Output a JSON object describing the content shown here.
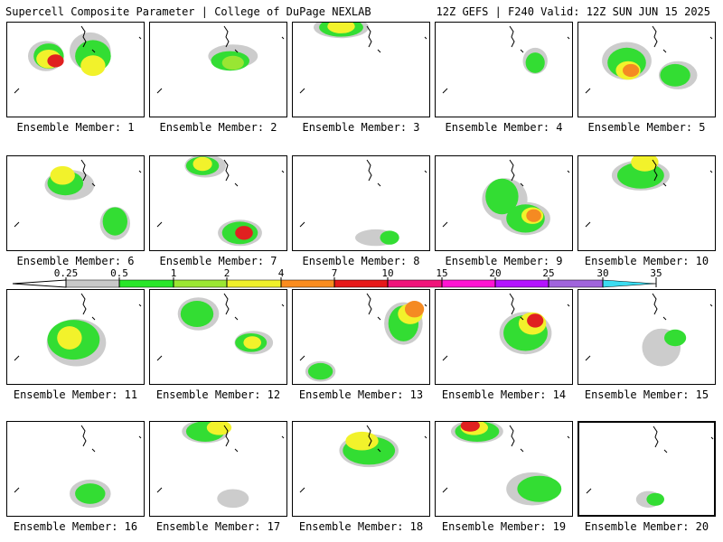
{
  "header": {
    "left": "Supercell Composite Parameter | College of DuPage NEXLAB",
    "right": "12Z GEFS | F240 Valid: 12Z SUN JUN 15 2025"
  },
  "legend": {
    "labels": [
      "0.25",
      "0.5",
      "1",
      "2",
      "4",
      "7",
      "10",
      "15",
      "20",
      "25",
      "30",
      "35"
    ],
    "colors": [
      "#c8c8c8",
      "#28e628",
      "#9be632",
      "#f0f028",
      "#fa8c1e",
      "#e61919",
      "#f0147a",
      "#ff14d2",
      "#b414ff",
      "#a064dc",
      "#3cdcf0"
    ]
  },
  "palette": {
    "grey": "#cccccc",
    "green": "#33dd33",
    "lime": "#99e633",
    "yellow": "#f2f22b",
    "orange": "#f58a22",
    "red": "#e02020"
  },
  "panels": [
    {
      "label": "Ensemble Member: 1",
      "blobs": [
        [
          0.28,
          0.35,
          0.18,
          0.22,
          "grey"
        ],
        [
          0.6,
          0.3,
          0.22,
          0.3,
          "grey"
        ],
        [
          0.3,
          0.35,
          0.14,
          0.17,
          "green"
        ],
        [
          0.62,
          0.35,
          0.18,
          0.24,
          "green"
        ],
        [
          0.3,
          0.38,
          0.1,
          0.1,
          "yellow"
        ],
        [
          0.62,
          0.45,
          0.1,
          0.12,
          "yellow"
        ],
        [
          0.35,
          0.4,
          0.04,
          0.04,
          "red"
        ]
      ]
    },
    {
      "label": "Ensemble Member: 2",
      "blobs": [
        [
          0.6,
          0.35,
          0.28,
          0.15,
          "grey"
        ],
        [
          0.58,
          0.4,
          0.2,
          0.11,
          "green"
        ],
        [
          0.6,
          0.42,
          0.08,
          0.05,
          "lime"
        ]
      ]
    },
    {
      "label": "Ensemble Member: 3",
      "blobs": [
        [
          0.35,
          0.05,
          0.32,
          0.13,
          "grey"
        ],
        [
          0.35,
          0.05,
          0.24,
          0.1,
          "green"
        ],
        [
          0.35,
          0.04,
          0.12,
          0.05,
          "yellow"
        ]
      ]
    },
    {
      "label": "Ensemble Member: 4",
      "blobs": [
        [
          0.72,
          0.4,
          0.1,
          0.18,
          "grey"
        ],
        [
          0.72,
          0.42,
          0.06,
          0.12,
          "green"
        ]
      ]
    },
    {
      "label": "Ensemble Member: 5",
      "blobs": [
        [
          0.35,
          0.4,
          0.28,
          0.3,
          "grey"
        ],
        [
          0.72,
          0.55,
          0.2,
          0.2,
          "grey"
        ],
        [
          0.35,
          0.42,
          0.2,
          0.22,
          "green"
        ],
        [
          0.7,
          0.55,
          0.14,
          0.14,
          "green"
        ],
        [
          0.36,
          0.5,
          0.1,
          0.1,
          "yellow"
        ],
        [
          0.38,
          0.5,
          0.04,
          0.04,
          "orange"
        ]
      ]
    },
    {
      "label": "Ensemble Member: 6",
      "blobs": [
        [
          0.45,
          0.3,
          0.28,
          0.22,
          "grey"
        ],
        [
          0.78,
          0.7,
          0.14,
          0.25,
          "grey"
        ],
        [
          0.42,
          0.28,
          0.18,
          0.16,
          "green"
        ],
        [
          0.78,
          0.68,
          0.1,
          0.2,
          "green"
        ],
        [
          0.4,
          0.2,
          0.1,
          0.1,
          "yellow"
        ]
      ]
    },
    {
      "label": "Ensemble Member: 7",
      "blobs": [
        [
          0.4,
          0.1,
          0.22,
          0.15,
          "grey"
        ],
        [
          0.65,
          0.8,
          0.24,
          0.18,
          "grey"
        ],
        [
          0.38,
          0.1,
          0.16,
          0.1,
          "green"
        ],
        [
          0.65,
          0.8,
          0.18,
          0.14,
          "green"
        ],
        [
          0.38,
          0.08,
          0.06,
          0.05,
          "yellow"
        ],
        [
          0.68,
          0.8,
          0.05,
          0.05,
          "red"
        ]
      ]
    },
    {
      "label": "Ensemble Member: 8",
      "blobs": [
        [
          0.6,
          0.85,
          0.22,
          0.08,
          "grey"
        ],
        [
          0.7,
          0.85,
          0.06,
          0.05,
          "green"
        ]
      ]
    },
    {
      "label": "Ensemble Member: 9",
      "blobs": [
        [
          0.5,
          0.45,
          0.25,
          0.35,
          "grey"
        ],
        [
          0.65,
          0.65,
          0.28,
          0.25,
          "grey"
        ],
        [
          0.48,
          0.42,
          0.16,
          0.28,
          "green"
        ],
        [
          0.65,
          0.65,
          0.2,
          0.2,
          "green"
        ],
        [
          0.7,
          0.62,
          0.08,
          0.08,
          "yellow"
        ],
        [
          0.71,
          0.62,
          0.03,
          0.04,
          "orange"
        ]
      ]
    },
    {
      "label": "Ensemble Member: 10",
      "blobs": [
        [
          0.45,
          0.2,
          0.34,
          0.22,
          "grey"
        ],
        [
          0.45,
          0.2,
          0.26,
          0.18,
          "green"
        ],
        [
          0.48,
          0.06,
          0.12,
          0.1,
          "yellow"
        ]
      ]
    },
    {
      "label": "Ensemble Member: 11",
      "blobs": [
        [
          0.5,
          0.55,
          0.35,
          0.4,
          "grey"
        ],
        [
          0.48,
          0.52,
          0.3,
          0.32,
          "green"
        ],
        [
          0.45,
          0.5,
          0.1,
          0.15,
          "yellow"
        ]
      ]
    },
    {
      "label": "Ensemble Member: 12",
      "blobs": [
        [
          0.35,
          0.25,
          0.22,
          0.25,
          "grey"
        ],
        [
          0.75,
          0.55,
          0.2,
          0.15,
          "grey"
        ],
        [
          0.34,
          0.25,
          0.16,
          0.18,
          "green"
        ],
        [
          0.73,
          0.55,
          0.15,
          0.1,
          "green"
        ],
        [
          0.74,
          0.55,
          0.05,
          0.04,
          "yellow"
        ]
      ]
    },
    {
      "label": "Ensemble Member: 13",
      "blobs": [
        [
          0.8,
          0.35,
          0.2,
          0.35,
          "grey"
        ],
        [
          0.2,
          0.85,
          0.14,
          0.12,
          "grey"
        ],
        [
          0.8,
          0.35,
          0.14,
          0.28,
          "green"
        ],
        [
          0.2,
          0.85,
          0.1,
          0.08,
          "green"
        ],
        [
          0.85,
          0.25,
          0.1,
          0.12,
          "yellow"
        ],
        [
          0.88,
          0.2,
          0.06,
          0.08,
          "orange"
        ]
      ]
    },
    {
      "label": "Ensemble Member: 14",
      "blobs": [
        [
          0.65,
          0.45,
          0.3,
          0.35,
          "grey"
        ],
        [
          0.65,
          0.45,
          0.24,
          0.28,
          "green"
        ],
        [
          0.7,
          0.35,
          0.12,
          0.14,
          "yellow"
        ],
        [
          0.72,
          0.32,
          0.04,
          0.05,
          "red"
        ]
      ]
    },
    {
      "label": "Ensemble Member: 15",
      "blobs": [
        [
          0.6,
          0.6,
          0.2,
          0.3,
          "grey"
        ],
        [
          0.7,
          0.5,
          0.08,
          0.08,
          "green"
        ]
      ]
    },
    {
      "label": "Ensemble Member: 16",
      "blobs": [
        [
          0.6,
          0.75,
          0.22,
          0.2,
          "grey"
        ],
        [
          0.6,
          0.75,
          0.14,
          0.12,
          "green"
        ]
      ]
    },
    {
      "label": "Ensemble Member: 17",
      "blobs": [
        [
          0.4,
          0.1,
          0.26,
          0.15,
          "grey"
        ],
        [
          0.6,
          0.8,
          0.15,
          0.1,
          "grey"
        ],
        [
          0.4,
          0.1,
          0.2,
          0.12,
          "green"
        ],
        [
          0.5,
          0.06,
          0.1,
          0.06,
          "yellow"
        ]
      ]
    },
    {
      "label": "Ensemble Member: 18",
      "blobs": [
        [
          0.55,
          0.3,
          0.35,
          0.25,
          "grey"
        ],
        [
          0.55,
          0.3,
          0.3,
          0.2,
          "green"
        ],
        [
          0.5,
          0.2,
          0.16,
          0.1,
          "yellow"
        ]
      ]
    },
    {
      "label": "Ensemble Member: 19",
      "blobs": [
        [
          0.3,
          0.1,
          0.3,
          0.15,
          "grey"
        ],
        [
          0.7,
          0.7,
          0.3,
          0.25,
          "grey"
        ],
        [
          0.3,
          0.1,
          0.24,
          0.12,
          "green"
        ],
        [
          0.75,
          0.7,
          0.24,
          0.18,
          "green"
        ],
        [
          0.28,
          0.06,
          0.12,
          0.06,
          "yellow"
        ],
        [
          0.25,
          0.04,
          0.06,
          0.03,
          "red"
        ]
      ]
    },
    {
      "label": "Ensemble Member: 20",
      "blobs": [
        [
          0.5,
          0.8,
          0.1,
          0.08,
          "grey"
        ],
        [
          0.55,
          0.8,
          0.05,
          0.04,
          "green"
        ]
      ]
    }
  ]
}
